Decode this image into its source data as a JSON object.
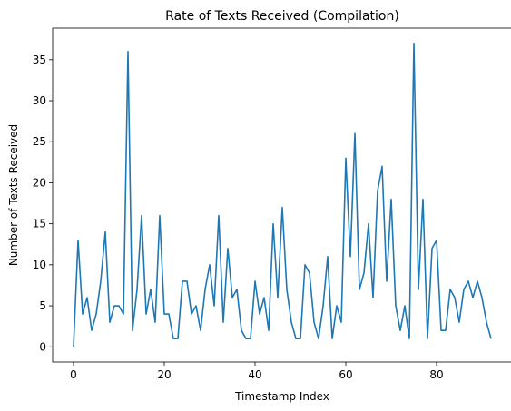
{
  "chart_data": {
    "type": "line",
    "title": "Rate of Texts Received (Compilation)",
    "xlabel": "Timestamp Index",
    "ylabel": "Number of Texts Received",
    "xlim": [
      -4.6,
      96.6
    ],
    "ylim": [
      -1.85,
      38.85
    ],
    "xticks": [
      0,
      20,
      40,
      60,
      80
    ],
    "yticks": [
      0,
      5,
      10,
      15,
      20,
      25,
      30,
      35
    ],
    "grid": false,
    "color": "#1f77b4",
    "series": [
      {
        "values": [
          0,
          13,
          4,
          6,
          2,
          4,
          8,
          14,
          3,
          5,
          5,
          4,
          36,
          2,
          7,
          16,
          4,
          7,
          3,
          16,
          4,
          4,
          1,
          1,
          8,
          8,
          4,
          5,
          2,
          7,
          10,
          5,
          16,
          3,
          12,
          6,
          7,
          2,
          1,
          1,
          8,
          4,
          6,
          2,
          15,
          6,
          17,
          7,
          3,
          1,
          1,
          10,
          9,
          3,
          1,
          5,
          11,
          1,
          5,
          3,
          23,
          11,
          26,
          7,
          9,
          15,
          6,
          19,
          22,
          8,
          18,
          5,
          2,
          5,
          1,
          37,
          7,
          18,
          1,
          12,
          13,
          2,
          2,
          7,
          6,
          3,
          7,
          8,
          6,
          8,
          6,
          3,
          1
        ]
      }
    ]
  }
}
